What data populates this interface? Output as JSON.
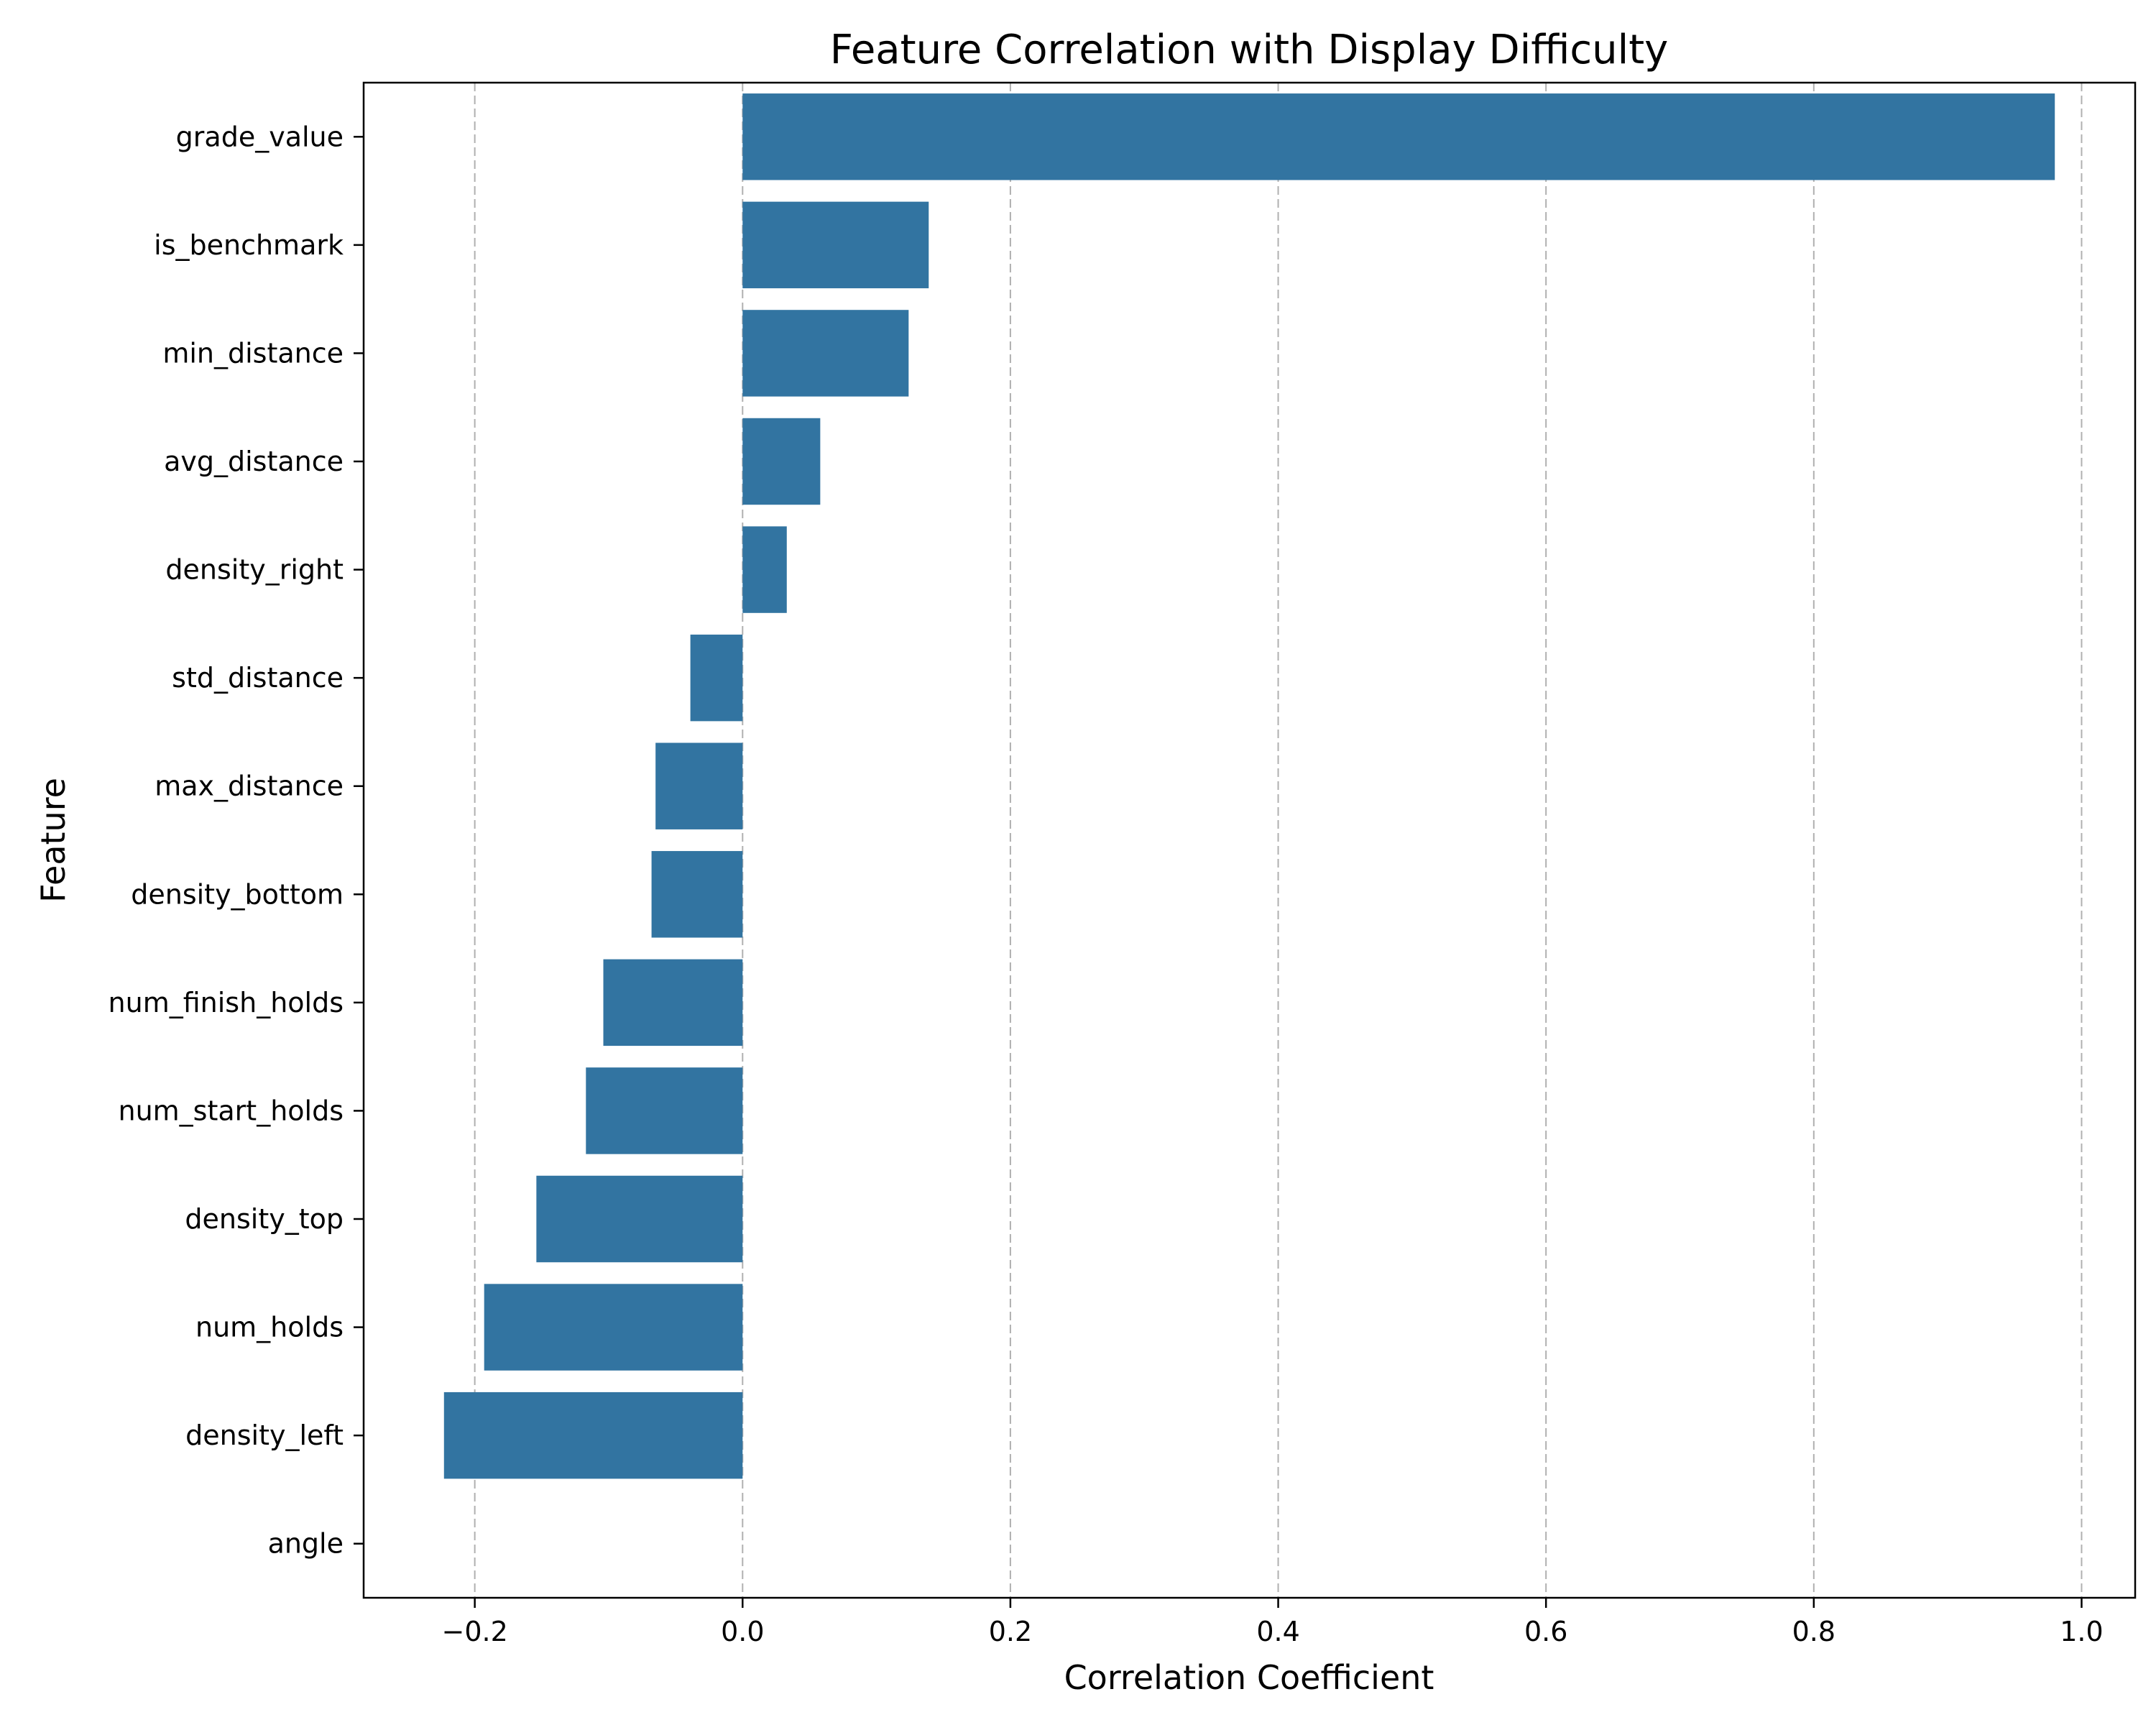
{
  "chart_data": {
    "type": "bar",
    "orientation": "horizontal",
    "title": "Feature Correlation with Display Difficulty",
    "xlabel": "Correlation Coefficient",
    "ylabel": "Feature",
    "xlim": [
      -0.283,
      1.04
    ],
    "xticks": [
      -0.2,
      0.0,
      0.2,
      0.4,
      0.6,
      0.8,
      1.0
    ],
    "xtick_labels": [
      "−0.2",
      "0.0",
      "0.2",
      "0.4",
      "0.6",
      "0.8",
      "1.0"
    ],
    "grid": "x-dashed",
    "bar_color": "#3274a1",
    "grid_color": "#b0b0b0",
    "categories": [
      "grade_value",
      "is_benchmark",
      "min_distance",
      "avg_distance",
      "density_right",
      "std_distance",
      "max_distance",
      "density_bottom",
      "num_finish_holds",
      "num_start_holds",
      "density_top",
      "num_holds",
      "density_left",
      "angle"
    ],
    "values": [
      0.98,
      0.139,
      0.124,
      0.058,
      0.033,
      -0.039,
      -0.065,
      -0.068,
      -0.104,
      -0.117,
      -0.154,
      -0.193,
      -0.223,
      0.0
    ]
  }
}
